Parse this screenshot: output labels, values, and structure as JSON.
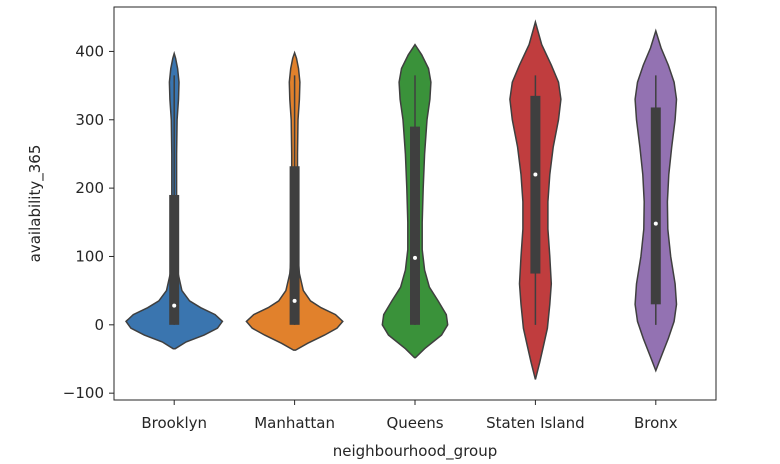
{
  "chart_data": {
    "type": "violin",
    "title": "",
    "xlabel": "neighbourhood_group",
    "ylabel": "availability_365",
    "categories": [
      "Brooklyn",
      "Manhattan",
      "Queens",
      "Staten Island",
      "Bronx"
    ],
    "ylim": [
      -110,
      465
    ],
    "yticks": [
      -100,
      0,
      100,
      200,
      300,
      400
    ],
    "ytick_labels": [
      "−100",
      "0",
      "100",
      "200",
      "300",
      "400"
    ],
    "grid": false,
    "legend": "none",
    "series": [
      {
        "category": "Brooklyn",
        "color": "#3a75af",
        "min": 0,
        "q1": 0,
        "median": 28,
        "q3": 190,
        "max": 365,
        "violin": [
          [
            -35,
            0.02
          ],
          [
            -25,
            0.25
          ],
          [
            -15,
            0.62
          ],
          [
            -5,
            0.9
          ],
          [
            5,
            1.0
          ],
          [
            15,
            0.85
          ],
          [
            25,
            0.55
          ],
          [
            35,
            0.32
          ],
          [
            50,
            0.16
          ],
          [
            75,
            0.08
          ],
          [
            100,
            0.06
          ],
          [
            150,
            0.05
          ],
          [
            200,
            0.05
          ],
          [
            250,
            0.05
          ],
          [
            300,
            0.06
          ],
          [
            330,
            0.09
          ],
          [
            355,
            0.1
          ],
          [
            375,
            0.07
          ],
          [
            390,
            0.03
          ],
          [
            397,
            0.0
          ]
        ]
      },
      {
        "category": "Manhattan",
        "color": "#e1812c",
        "min": 0,
        "q1": 0,
        "median": 35,
        "q3": 232,
        "max": 365,
        "violin": [
          [
            -37,
            0.02
          ],
          [
            -27,
            0.27
          ],
          [
            -15,
            0.62
          ],
          [
            -5,
            0.88
          ],
          [
            5,
            1.0
          ],
          [
            15,
            0.85
          ],
          [
            25,
            0.55
          ],
          [
            35,
            0.33
          ],
          [
            50,
            0.18
          ],
          [
            75,
            0.1
          ],
          [
            100,
            0.07
          ],
          [
            150,
            0.06
          ],
          [
            200,
            0.06
          ],
          [
            250,
            0.06
          ],
          [
            300,
            0.07
          ],
          [
            330,
            0.1
          ],
          [
            355,
            0.11
          ],
          [
            375,
            0.08
          ],
          [
            390,
            0.04
          ],
          [
            398,
            0.0
          ]
        ]
      },
      {
        "category": "Queens",
        "color": "#3a923a",
        "min": 0,
        "q1": 0,
        "median": 98,
        "q3": 290,
        "max": 365,
        "violin": [
          [
            -48,
            0.01
          ],
          [
            -35,
            0.2
          ],
          [
            -15,
            0.55
          ],
          [
            0,
            0.68
          ],
          [
            15,
            0.65
          ],
          [
            35,
            0.48
          ],
          [
            55,
            0.3
          ],
          [
            80,
            0.2
          ],
          [
            110,
            0.15
          ],
          [
            150,
            0.15
          ],
          [
            200,
            0.17
          ],
          [
            250,
            0.2
          ],
          [
            300,
            0.25
          ],
          [
            330,
            0.31
          ],
          [
            355,
            0.33
          ],
          [
            375,
            0.28
          ],
          [
            395,
            0.14
          ],
          [
            410,
            0.0
          ]
        ]
      },
      {
        "category": "Staten Island",
        "color": "#c03d3e",
        "min": 0,
        "q1": 75,
        "median": 220,
        "q3": 335,
        "max": 365,
        "violin": [
          [
            -80,
            0.0
          ],
          [
            -55,
            0.09
          ],
          [
            -30,
            0.17
          ],
          [
            -5,
            0.25
          ],
          [
            30,
            0.3
          ],
          [
            60,
            0.33
          ],
          [
            100,
            0.3
          ],
          [
            140,
            0.26
          ],
          [
            180,
            0.26
          ],
          [
            220,
            0.3
          ],
          [
            260,
            0.37
          ],
          [
            300,
            0.48
          ],
          [
            330,
            0.53
          ],
          [
            355,
            0.48
          ],
          [
            380,
            0.33
          ],
          [
            410,
            0.13
          ],
          [
            443,
            0.0
          ]
        ]
      },
      {
        "category": "Bronx",
        "color": "#9372b2",
        "min": 0,
        "q1": 30,
        "median": 148,
        "q3": 318,
        "max": 365,
        "violin": [
          [
            -67,
            0.0
          ],
          [
            -45,
            0.12
          ],
          [
            -20,
            0.26
          ],
          [
            5,
            0.38
          ],
          [
            30,
            0.43
          ],
          [
            60,
            0.4
          ],
          [
            100,
            0.31
          ],
          [
            140,
            0.25
          ],
          [
            180,
            0.24
          ],
          [
            220,
            0.27
          ],
          [
            260,
            0.33
          ],
          [
            300,
            0.4
          ],
          [
            330,
            0.43
          ],
          [
            355,
            0.38
          ],
          [
            380,
            0.26
          ],
          [
            405,
            0.11
          ],
          [
            430,
            0.0
          ]
        ]
      }
    ]
  }
}
